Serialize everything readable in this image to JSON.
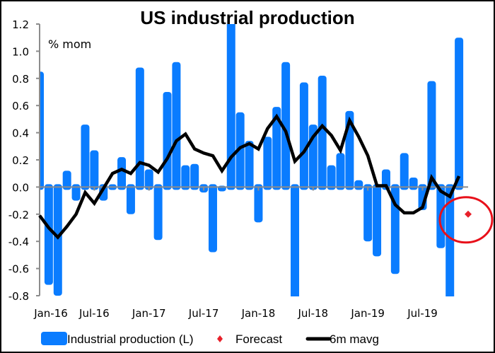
{
  "chart_data": {
    "type": "bar",
    "title": "US industrial production",
    "unit_label": "% mom",
    "xlabel": "",
    "ylabel": "% mom",
    "ylim": [
      -0.8,
      1.2
    ],
    "yticks": [
      1.2,
      1.0,
      0.8,
      0.6,
      0.4,
      0.2,
      0.0,
      -0.2,
      -0.4,
      -0.6,
      -0.8
    ],
    "ytick_labels": [
      "1.2",
      "1.0",
      "0.8",
      "0.6",
      "0.4",
      "0.2",
      "0.0",
      "-0.2",
      "-0.4",
      "-0.6",
      "-0.8"
    ],
    "xtick_labels": [
      "Jan-16",
      "Jul-16",
      "Jan-17",
      "Jul-17",
      "Jan-18",
      "Jul-18",
      "Jan-19",
      "Jul-19"
    ],
    "xtick_indices": [
      0,
      6,
      12,
      18,
      24,
      30,
      36,
      42
    ],
    "categories": [
      "Jan-16",
      "Feb-16",
      "Mar-16",
      "Apr-16",
      "May-16",
      "Jun-16",
      "Jul-16",
      "Aug-16",
      "Sep-16",
      "Oct-16",
      "Nov-16",
      "Dec-16",
      "Jan-17",
      "Feb-17",
      "Mar-17",
      "Apr-17",
      "May-17",
      "Jun-17",
      "Jul-17",
      "Aug-17",
      "Sep-17",
      "Oct-17",
      "Nov-17",
      "Dec-17",
      "Jan-18",
      "Feb-18",
      "Mar-18",
      "Apr-18",
      "May-18",
      "Jun-18",
      "Jul-18",
      "Aug-18",
      "Sep-18",
      "Oct-18",
      "Nov-18",
      "Dec-18",
      "Jan-19",
      "Feb-19",
      "Mar-19",
      "Apr-19",
      "May-19",
      "Jun-19",
      "Jul-19",
      "Aug-19",
      "Sep-19",
      "Oct-19",
      "Nov-19"
    ],
    "series": [
      {
        "name": "Industrial production (L)",
        "type": "bar",
        "color": "#0a7cff",
        "values": [
          0.85,
          -0.72,
          -0.8,
          0.12,
          -0.1,
          0.46,
          0.27,
          -0.1,
          0.02,
          0.22,
          -0.2,
          0.88,
          0.13,
          -0.39,
          0.7,
          0.92,
          0.16,
          0.17,
          -0.04,
          -0.48,
          0.01,
          1.25,
          0.55,
          0.34,
          -0.26,
          0.37,
          0.59,
          0.92,
          -0.85,
          0.77,
          0.46,
          0.82,
          0.16,
          0.25,
          0.56,
          0.05,
          -0.4,
          -0.51,
          0.13,
          -0.64,
          0.25,
          0.07,
          -0.17,
          0.78,
          -0.45,
          -0.85,
          1.1
        ]
      },
      {
        "name": "6m mavg",
        "type": "line",
        "color": "#000000",
        "values": [
          -0.21,
          -0.3,
          -0.37,
          -0.29,
          -0.2,
          -0.04,
          -0.12,
          -0.01,
          0.1,
          0.13,
          0.1,
          0.18,
          0.16,
          0.11,
          0.21,
          0.34,
          0.39,
          0.28,
          0.25,
          0.23,
          0.12,
          0.22,
          0.29,
          0.32,
          0.28,
          0.43,
          0.52,
          0.41,
          0.19,
          0.26,
          0.37,
          0.45,
          0.38,
          0.27,
          0.49,
          0.37,
          0.23,
          0.01,
          0.01,
          -0.13,
          -0.19,
          -0.19,
          -0.15,
          0.07,
          -0.03,
          -0.07,
          0.08
        ]
      },
      {
        "name": "Forecast",
        "type": "scatter",
        "color": "#e8202a",
        "points": [
          {
            "x": "Dec-19",
            "y": -0.2
          }
        ]
      }
    ],
    "annotation": {
      "type": "circle",
      "around": "Forecast",
      "color": "#e8101a"
    },
    "grid": false,
    "legend": {
      "position": "bottom",
      "entries": [
        "Industrial production (L)",
        "Forecast",
        "6m mavg"
      ]
    }
  }
}
